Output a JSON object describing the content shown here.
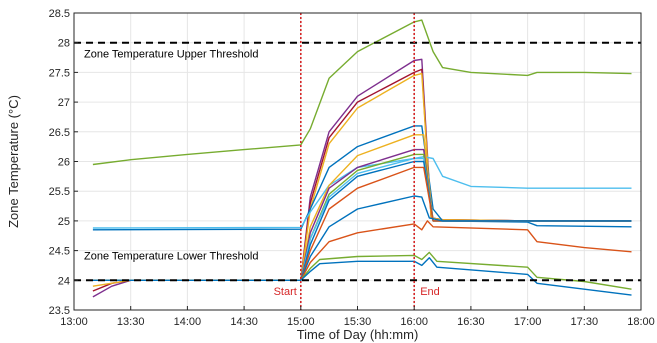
{
  "chart_data": {
    "type": "line",
    "title": "",
    "xlabel": "Time of Day (hh:mm)",
    "ylabel": "Zone Temperature (°C)",
    "xlim": [
      "13:00",
      "18:00"
    ],
    "ylim": [
      23.5,
      28.5
    ],
    "x_ticks": [
      "13:00",
      "13:30",
      "14:00",
      "14:30",
      "15:00",
      "15:30",
      "16:00",
      "16:30",
      "17:00",
      "17:30",
      "18:00"
    ],
    "y_ticks": [
      "23.5",
      "24",
      "24.5",
      "25",
      "25.5",
      "26",
      "26.5",
      "27",
      "27.5",
      "28",
      "28.5"
    ],
    "grid": true,
    "thresholds": [
      {
        "label": "Zone Temperature Upper Threshold",
        "value": 28,
        "color": "#000000"
      },
      {
        "label": "Zone Temperature Lower Threshold",
        "value": 24,
        "color": "#000000"
      }
    ],
    "markers": [
      {
        "label": "Start",
        "time": "15:00",
        "color": "#d62728"
      },
      {
        "label": "End",
        "time": "16:00",
        "color": "#d62728"
      }
    ],
    "series": [
      {
        "color": "#77ac30",
        "points": [
          [
            "13:10",
            25.95
          ],
          [
            "13:30",
            26.03
          ],
          [
            "14:00",
            26.12
          ],
          [
            "14:30",
            26.2
          ],
          [
            "15:00",
            26.28
          ],
          [
            "15:05",
            26.55
          ],
          [
            "15:15",
            27.4
          ],
          [
            "15:30",
            27.85
          ],
          [
            "16:00",
            28.35
          ],
          [
            "16:04",
            28.38
          ],
          [
            "16:10",
            27.85
          ],
          [
            "16:15",
            27.58
          ],
          [
            "16:30",
            27.5
          ],
          [
            "17:00",
            27.45
          ],
          [
            "17:05",
            27.5
          ],
          [
            "17:30",
            27.5
          ],
          [
            "17:55",
            27.48
          ]
        ]
      },
      {
        "color": "#7e2f8e",
        "points": [
          [
            "13:10",
            23.72
          ],
          [
            "13:20",
            23.9
          ],
          [
            "13:30",
            24.0
          ],
          [
            "15:00",
            24.0
          ],
          [
            "15:05",
            25.4
          ],
          [
            "15:15",
            26.5
          ],
          [
            "15:30",
            27.1
          ],
          [
            "16:00",
            27.7
          ],
          [
            "16:04",
            27.72
          ],
          [
            "16:09",
            25.05
          ],
          [
            "16:15",
            25.02
          ],
          [
            "17:00",
            25.0
          ],
          [
            "17:55",
            25.0
          ]
        ]
      },
      {
        "color": "#a2142f",
        "points": [
          [
            "13:10",
            23.82
          ],
          [
            "13:20",
            23.95
          ],
          [
            "13:30",
            24.0
          ],
          [
            "15:00",
            24.0
          ],
          [
            "15:05",
            25.3
          ],
          [
            "15:15",
            26.4
          ],
          [
            "15:30",
            27.0
          ],
          [
            "16:00",
            27.5
          ],
          [
            "16:04",
            27.55
          ],
          [
            "16:09",
            25.05
          ],
          [
            "16:15",
            25.02
          ],
          [
            "17:00",
            25.0
          ],
          [
            "17:55",
            25.0
          ]
        ]
      },
      {
        "color": "#edb120",
        "points": [
          [
            "13:10",
            23.9
          ],
          [
            "13:30",
            24.0
          ],
          [
            "15:00",
            24.0
          ],
          [
            "15:05",
            25.2
          ],
          [
            "15:15",
            26.3
          ],
          [
            "15:30",
            26.9
          ],
          [
            "16:00",
            27.45
          ],
          [
            "16:04",
            27.48
          ],
          [
            "16:09",
            25.05
          ],
          [
            "16:15",
            25.02
          ],
          [
            "17:00",
            25.0
          ],
          [
            "17:55",
            25.0
          ]
        ]
      },
      {
        "color": "#0072bd",
        "points": [
          [
            "13:10",
            24.85
          ],
          [
            "15:00",
            24.86
          ],
          [
            "15:05",
            25.2
          ],
          [
            "15:15",
            25.9
          ],
          [
            "15:30",
            26.25
          ],
          [
            "16:00",
            26.6
          ],
          [
            "16:04",
            26.6
          ],
          [
            "16:10",
            25.2
          ],
          [
            "16:15",
            25.0
          ],
          [
            "17:00",
            24.98
          ],
          [
            "17:05",
            24.92
          ],
          [
            "17:55",
            24.9
          ]
        ]
      },
      {
        "color": "#4dbeee",
        "points": [
          [
            "13:10",
            24.88
          ],
          [
            "15:00",
            24.89
          ],
          [
            "15:05",
            25.15
          ],
          [
            "15:15",
            25.6
          ],
          [
            "15:30",
            25.9
          ],
          [
            "16:00",
            26.05
          ],
          [
            "16:05",
            26.08
          ],
          [
            "16:10",
            26.05
          ],
          [
            "16:15",
            25.75
          ],
          [
            "16:30",
            25.58
          ],
          [
            "17:00",
            25.55
          ],
          [
            "17:55",
            25.55
          ]
        ]
      },
      {
        "color": "#edb120",
        "points": [
          [
            "13:10",
            24.0
          ],
          [
            "15:00",
            24.0
          ],
          [
            "15:05",
            24.9
          ],
          [
            "15:15",
            25.6
          ],
          [
            "15:30",
            26.1
          ],
          [
            "16:00",
            26.45
          ],
          [
            "16:05",
            26.45
          ],
          [
            "16:10",
            25.0
          ],
          [
            "17:55",
            25.0
          ]
        ]
      },
      {
        "color": "#7e2f8e",
        "points": [
          [
            "13:10",
            24.0
          ],
          [
            "15:00",
            24.0
          ],
          [
            "15:05",
            24.8
          ],
          [
            "15:15",
            25.55
          ],
          [
            "15:30",
            25.9
          ],
          [
            "16:00",
            26.2
          ],
          [
            "16:05",
            26.2
          ],
          [
            "16:10",
            25.0
          ],
          [
            "17:55",
            25.0
          ]
        ]
      },
      {
        "color": "#77ac30",
        "points": [
          [
            "13:10",
            24.0
          ],
          [
            "15:00",
            24.0
          ],
          [
            "15:05",
            24.7
          ],
          [
            "15:15",
            25.45
          ],
          [
            "15:30",
            25.85
          ],
          [
            "16:00",
            26.12
          ],
          [
            "16:05",
            26.12
          ],
          [
            "16:10",
            25.0
          ],
          [
            "17:55",
            25.0
          ]
        ]
      },
      {
        "color": "#4dbeee",
        "points": [
          [
            "13:10",
            24.0
          ],
          [
            "15:00",
            24.0
          ],
          [
            "15:05",
            24.7
          ],
          [
            "15:15",
            25.4
          ],
          [
            "15:30",
            25.8
          ],
          [
            "16:00",
            26.05
          ],
          [
            "16:05",
            26.05
          ],
          [
            "16:10",
            25.0
          ],
          [
            "17:55",
            25.0
          ]
        ]
      },
      {
        "color": "#0072bd",
        "points": [
          [
            "13:10",
            24.0
          ],
          [
            "15:00",
            24.0
          ],
          [
            "15:05",
            24.6
          ],
          [
            "15:15",
            25.35
          ],
          [
            "15:30",
            25.75
          ],
          [
            "16:00",
            26.0
          ],
          [
            "16:05",
            26.0
          ],
          [
            "16:10",
            25.0
          ],
          [
            "17:55",
            25.0
          ]
        ]
      },
      {
        "color": "#d95319",
        "points": [
          [
            "13:10",
            24.0
          ],
          [
            "15:00",
            24.0
          ],
          [
            "15:05",
            24.5
          ],
          [
            "15:15",
            25.2
          ],
          [
            "15:30",
            25.55
          ],
          [
            "16:00",
            25.9
          ],
          [
            "16:05",
            25.9
          ],
          [
            "16:10",
            25.0
          ],
          [
            "17:55",
            25.0
          ]
        ]
      },
      {
        "color": "#0072bd",
        "points": [
          [
            "13:10",
            24.0
          ],
          [
            "15:00",
            24.0
          ],
          [
            "15:05",
            24.4
          ],
          [
            "15:15",
            24.9
          ],
          [
            "15:30",
            25.2
          ],
          [
            "16:00",
            25.42
          ],
          [
            "16:04",
            25.4
          ],
          [
            "16:08",
            25.05
          ],
          [
            "16:15",
            25.0
          ],
          [
            "17:55",
            25.0
          ]
        ]
      },
      {
        "color": "#d95319",
        "points": [
          [
            "13:10",
            24.0
          ],
          [
            "15:00",
            24.0
          ],
          [
            "15:05",
            24.3
          ],
          [
            "15:15",
            24.65
          ],
          [
            "15:30",
            24.8
          ],
          [
            "16:00",
            24.95
          ],
          [
            "16:04",
            24.85
          ],
          [
            "16:07",
            25.0
          ],
          [
            "16:10",
            24.9
          ],
          [
            "17:00",
            24.85
          ],
          [
            "17:05",
            24.65
          ],
          [
            "17:30",
            24.55
          ],
          [
            "17:55",
            24.48
          ]
        ]
      },
      {
        "color": "#77ac30",
        "points": [
          [
            "13:10",
            24.0
          ],
          [
            "15:00",
            24.0
          ],
          [
            "15:05",
            24.2
          ],
          [
            "15:10",
            24.35
          ],
          [
            "15:30",
            24.4
          ],
          [
            "16:00",
            24.42
          ],
          [
            "16:04",
            24.35
          ],
          [
            "16:08",
            24.47
          ],
          [
            "16:12",
            24.32
          ],
          [
            "17:00",
            24.22
          ],
          [
            "17:05",
            24.05
          ],
          [
            "17:30",
            23.98
          ],
          [
            "17:55",
            23.85
          ]
        ]
      },
      {
        "color": "#0072bd",
        "points": [
          [
            "13:10",
            24.0
          ],
          [
            "15:00",
            24.0
          ],
          [
            "15:05",
            24.15
          ],
          [
            "15:10",
            24.28
          ],
          [
            "15:30",
            24.32
          ],
          [
            "16:00",
            24.32
          ],
          [
            "16:04",
            24.25
          ],
          [
            "16:08",
            24.38
          ],
          [
            "16:12",
            24.22
          ],
          [
            "17:00",
            24.1
          ],
          [
            "17:05",
            23.95
          ],
          [
            "17:30",
            23.85
          ],
          [
            "17:55",
            23.75
          ]
        ]
      }
    ]
  }
}
